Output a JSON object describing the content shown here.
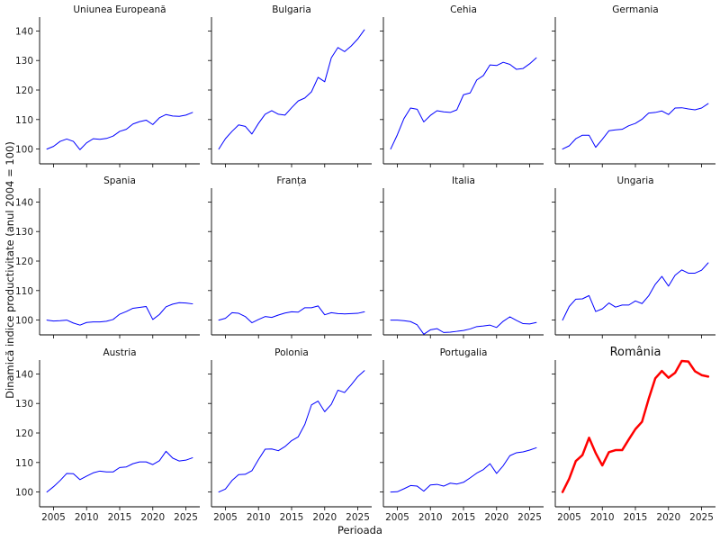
{
  "figure": {
    "xlabel": "Perioada",
    "ylabel": "Dinamică indice productivitate (anul 2004 = 100)"
  },
  "chart_data": [
    {
      "type": "line",
      "title": "Uniunea Europeană",
      "title_color": "#111111",
      "series": [
        {
          "color": "#0000ff",
          "line_width": 1,
          "x": [
            2004,
            2005,
            2006,
            2007,
            2008,
            2009,
            2010,
            2011,
            2012,
            2013,
            2014,
            2015,
            2016,
            2017,
            2018,
            2019,
            2020,
            2021,
            2022,
            2023,
            2024,
            2025,
            2026
          ],
          "values": [
            100.0,
            100.9,
            102.6,
            103.4,
            102.6,
            99.8,
            102.1,
            103.5,
            103.3,
            103.6,
            104.4,
            106.0,
            106.7,
            108.5,
            109.3,
            109.8,
            108.3,
            110.6,
            111.7,
            111.2,
            111.1,
            111.5,
            112.4
          ]
        }
      ]
    },
    {
      "type": "line",
      "title": "Bulgaria",
      "title_color": "#111111",
      "series": [
        {
          "color": "#0000ff",
          "line_width": 1,
          "x": [
            2004,
            2005,
            2006,
            2007,
            2008,
            2009,
            2010,
            2011,
            2012,
            2013,
            2014,
            2015,
            2016,
            2017,
            2018,
            2019,
            2020,
            2021,
            2022,
            2023,
            2024,
            2025,
            2026
          ],
          "values": [
            100.0,
            103.5,
            106.0,
            108.2,
            107.7,
            105.1,
            108.7,
            111.8,
            113.0,
            111.8,
            111.5,
            114.0,
            116.3,
            117.3,
            119.4,
            124.3,
            122.8,
            130.9,
            134.4,
            133.0,
            134.9,
            137.3,
            140.4
          ]
        }
      ]
    },
    {
      "type": "line",
      "title": "Cehia",
      "title_color": "#111111",
      "series": [
        {
          "color": "#0000ff",
          "line_width": 1,
          "x": [
            2004,
            2005,
            2006,
            2007,
            2008,
            2009,
            2010,
            2011,
            2012,
            2013,
            2014,
            2015,
            2016,
            2017,
            2018,
            2019,
            2020,
            2021,
            2022,
            2023,
            2024,
            2025,
            2026
          ],
          "values": [
            100.0,
            104.8,
            110.3,
            113.9,
            113.5,
            109.2,
            111.4,
            113.0,
            112.6,
            112.4,
            113.3,
            118.4,
            119.0,
            123.4,
            124.9,
            128.5,
            128.3,
            129.4,
            128.7,
            127.0,
            127.3,
            128.9,
            130.9
          ]
        }
      ]
    },
    {
      "type": "line",
      "title": "Germania",
      "title_color": "#111111",
      "series": [
        {
          "color": "#0000ff",
          "line_width": 1,
          "x": [
            2004,
            2005,
            2006,
            2007,
            2008,
            2009,
            2010,
            2011,
            2012,
            2013,
            2014,
            2015,
            2016,
            2017,
            2018,
            2019,
            2020,
            2021,
            2022,
            2023,
            2024,
            2025,
            2026
          ],
          "values": [
            100.0,
            101.1,
            103.5,
            104.7,
            104.7,
            100.6,
            103.3,
            106.2,
            106.5,
            106.7,
            107.9,
            108.7,
            110.1,
            112.2,
            112.4,
            112.9,
            111.7,
            113.9,
            114.0,
            113.6,
            113.3,
            113.9,
            115.4
          ]
        }
      ]
    },
    {
      "type": "line",
      "title": "Spania",
      "title_color": "#111111",
      "series": [
        {
          "color": "#0000ff",
          "line_width": 1,
          "x": [
            2004,
            2005,
            2006,
            2007,
            2008,
            2009,
            2010,
            2011,
            2012,
            2013,
            2014,
            2015,
            2016,
            2017,
            2018,
            2019,
            2020,
            2021,
            2022,
            2023,
            2024,
            2025,
            2026
          ],
          "values": [
            100.0,
            99.7,
            99.8,
            100.0,
            99.0,
            98.3,
            99.2,
            99.4,
            99.4,
            99.6,
            100.2,
            102.0,
            102.9,
            104.0,
            104.3,
            104.6,
            100.2,
            101.9,
            104.5,
            105.4,
            105.9,
            105.8,
            105.5
          ]
        }
      ]
    },
    {
      "type": "line",
      "title": "Franța",
      "title_color": "#111111",
      "series": [
        {
          "color": "#0000ff",
          "line_width": 1,
          "x": [
            2004,
            2005,
            2006,
            2007,
            2008,
            2009,
            2010,
            2011,
            2012,
            2013,
            2014,
            2015,
            2016,
            2017,
            2018,
            2019,
            2020,
            2021,
            2022,
            2023,
            2024,
            2025,
            2026
          ],
          "values": [
            100.0,
            100.6,
            102.5,
            102.3,
            101.2,
            99.1,
            100.2,
            101.2,
            100.9,
            101.7,
            102.4,
            102.8,
            102.7,
            104.2,
            104.2,
            104.8,
            101.8,
            102.5,
            102.2,
            102.1,
            102.2,
            102.3,
            102.8
          ]
        }
      ]
    },
    {
      "type": "line",
      "title": "Italia",
      "title_color": "#111111",
      "series": [
        {
          "color": "#0000ff",
          "line_width": 1,
          "x": [
            2004,
            2005,
            2006,
            2007,
            2008,
            2009,
            2010,
            2011,
            2012,
            2013,
            2014,
            2015,
            2016,
            2017,
            2018,
            2019,
            2020,
            2021,
            2022,
            2023,
            2024,
            2025,
            2026
          ],
          "values": [
            100.0,
            100.0,
            99.8,
            99.5,
            98.4,
            95.2,
            96.7,
            97.1,
            95.8,
            95.9,
            96.2,
            96.5,
            97.0,
            97.8,
            98.0,
            98.3,
            97.5,
            99.6,
            101.1,
            99.9,
            98.8,
            98.7,
            99.2
          ]
        }
      ]
    },
    {
      "type": "line",
      "title": "Ungaria",
      "title_color": "#111111",
      "series": [
        {
          "color": "#0000ff",
          "line_width": 1,
          "x": [
            2004,
            2005,
            2006,
            2007,
            2008,
            2009,
            2010,
            2011,
            2012,
            2013,
            2014,
            2015,
            2016,
            2017,
            2018,
            2019,
            2020,
            2021,
            2022,
            2023,
            2024,
            2025,
            2026
          ],
          "values": [
            100.0,
            104.6,
            107.1,
            107.2,
            108.3,
            102.9,
            103.8,
            105.8,
            104.4,
            105.1,
            105.1,
            106.5,
            105.6,
            108.2,
            112.1,
            114.8,
            111.5,
            115.2,
            117.0,
            115.9,
            115.9,
            116.9,
            119.4
          ]
        }
      ]
    },
    {
      "type": "line",
      "title": "Austria",
      "title_color": "#111111",
      "series": [
        {
          "color": "#0000ff",
          "line_width": 1,
          "x": [
            2004,
            2005,
            2006,
            2007,
            2008,
            2009,
            2010,
            2011,
            2012,
            2013,
            2014,
            2015,
            2016,
            2017,
            2018,
            2019,
            2020,
            2021,
            2022,
            2023,
            2024,
            2025,
            2026
          ],
          "values": [
            100.0,
            101.8,
            103.9,
            106.3,
            106.2,
            104.2,
            105.4,
            106.5,
            107.1,
            106.8,
            106.8,
            108.3,
            108.5,
            109.6,
            110.2,
            110.2,
            109.3,
            110.6,
            113.8,
            111.5,
            110.5,
            110.8,
            111.6
          ]
        }
      ]
    },
    {
      "type": "line",
      "title": "Polonia",
      "title_color": "#111111",
      "series": [
        {
          "color": "#0000ff",
          "line_width": 1,
          "x": [
            2004,
            2005,
            2006,
            2007,
            2008,
            2009,
            2010,
            2011,
            2012,
            2013,
            2014,
            2015,
            2016,
            2017,
            2018,
            2019,
            2020,
            2021,
            2022,
            2023,
            2024,
            2025,
            2026
          ],
          "values": [
            100.0,
            101.0,
            103.9,
            105.9,
            106.0,
            107.2,
            111.0,
            114.5,
            114.6,
            114.0,
            115.4,
            117.4,
            118.7,
            122.9,
            129.5,
            130.8,
            127.2,
            129.7,
            134.5,
            133.7,
            136.3,
            139.1,
            141.1
          ]
        }
      ]
    },
    {
      "type": "line",
      "title": "Portugalia",
      "title_color": "#111111",
      "series": [
        {
          "color": "#0000ff",
          "line_width": 1,
          "x": [
            2004,
            2005,
            2006,
            2007,
            2008,
            2009,
            2010,
            2011,
            2012,
            2013,
            2014,
            2015,
            2016,
            2017,
            2018,
            2019,
            2020,
            2021,
            2022,
            2023,
            2024,
            2025,
            2026
          ],
          "values": [
            100.0,
            100.1,
            101.1,
            102.2,
            102.0,
            100.3,
            102.4,
            102.6,
            102.0,
            103.0,
            102.7,
            103.3,
            104.8,
            106.4,
            107.6,
            109.6,
            106.3,
            108.9,
            112.3,
            113.3,
            113.6,
            114.2,
            115.0
          ]
        }
      ]
    },
    {
      "type": "line",
      "title": "România",
      "title_color": "#ff0000",
      "series": [
        {
          "color": "#ff0000",
          "line_width": 2.5,
          "x": [
            2004,
            2005,
            2006,
            2007,
            2008,
            2009,
            2010,
            2011,
            2012,
            2013,
            2014,
            2015,
            2016,
            2017,
            2018,
            2019,
            2020,
            2021,
            2022,
            2023,
            2024,
            2025,
            2026
          ],
          "values": [
            100.0,
            104.5,
            110.5,
            112.5,
            118.4,
            113.2,
            109.0,
            113.5,
            114.2,
            114.2,
            117.8,
            121.3,
            123.8,
            131.5,
            138.5,
            141.0,
            138.7,
            140.4,
            144.4,
            144.2,
            140.9,
            139.6,
            139.1
          ]
        }
      ]
    }
  ],
  "axes": {
    "xlim": [
      2002.9,
      2027.1
    ],
    "ylim": [
      95.0,
      144.7
    ],
    "xticks": [
      2005,
      2010,
      2015,
      2020,
      2025
    ],
    "yticks": [
      100,
      110,
      120,
      130,
      140
    ],
    "grid": false,
    "sharex": true,
    "sharey": true,
    "layout": "3x4"
  }
}
